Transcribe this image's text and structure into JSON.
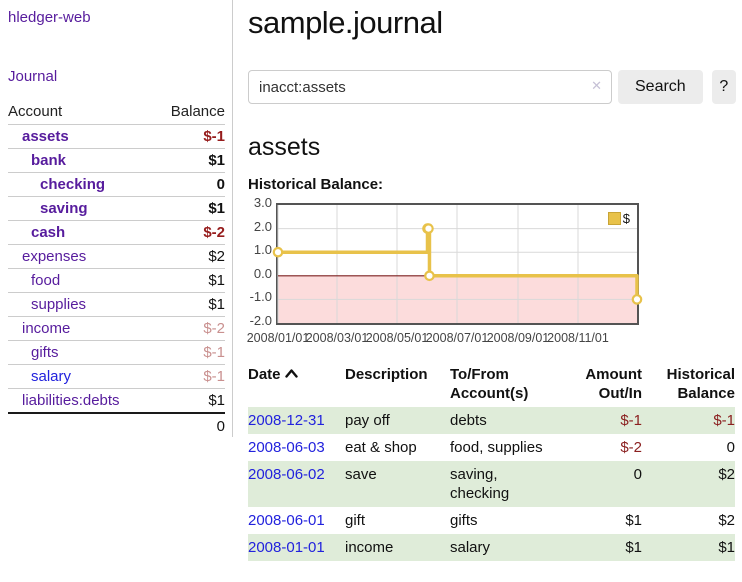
{
  "app": {
    "brand": "hledger-web",
    "nav_journal": "Journal"
  },
  "sidebar": {
    "headers": {
      "account": "Account",
      "balance": "Balance"
    },
    "accounts": [
      {
        "name": "assets",
        "indent": 1,
        "bold": true,
        "balance": "$-1",
        "balance_style": "neg-strong"
      },
      {
        "name": "bank",
        "indent": 2,
        "bold": true,
        "balance": "$1",
        "balance_style": "pos"
      },
      {
        "name": "checking",
        "indent": 3,
        "bold": true,
        "balance": "0",
        "balance_style": "pos"
      },
      {
        "name": "saving",
        "indent": 3,
        "bold": true,
        "balance": "$1",
        "balance_style": "pos"
      },
      {
        "name": "cash",
        "indent": 2,
        "bold": true,
        "balance": "$-2",
        "balance_style": "neg-strong"
      },
      {
        "name": "expenses",
        "indent": 1,
        "bold": false,
        "balance": "$2",
        "balance_style": "pos"
      },
      {
        "name": "food",
        "indent": 2,
        "bold": false,
        "balance": "$1",
        "balance_style": "pos"
      },
      {
        "name": "supplies",
        "indent": 2,
        "bold": false,
        "balance": "$1",
        "balance_style": "pos"
      },
      {
        "name": "income",
        "indent": 1,
        "bold": false,
        "balance": "$-2",
        "balance_style": "neg-soft"
      },
      {
        "name": "gifts",
        "indent": 2,
        "bold": false,
        "balance": "$-1",
        "balance_style": "neg-soft"
      },
      {
        "name": "salary",
        "indent": 2,
        "bold": false,
        "balance": "$-1",
        "balance_style": "neg-soft",
        "link_color": "blue"
      },
      {
        "name": "liabilities:debts",
        "indent": 1,
        "bold": false,
        "balance": "$1",
        "balance_style": "pos"
      }
    ],
    "total": "0"
  },
  "header": {
    "title": "sample.journal"
  },
  "search": {
    "value": "inacct:assets",
    "clear_icon": "✕",
    "button": "Search",
    "help": "?"
  },
  "account_page": {
    "heading": "assets"
  },
  "chart_data": {
    "type": "line",
    "title": "Historical Balance:",
    "step": true,
    "series": [
      {
        "name": "$",
        "color": "#e8c24a",
        "points": [
          [
            "2008-01-01",
            1
          ],
          [
            "2008-06-01",
            2
          ],
          [
            "2008-06-02",
            2
          ],
          [
            "2008-06-03",
            0
          ],
          [
            "2008-12-31",
            -1
          ]
        ]
      }
    ],
    "x_range": [
      "2008-01-01",
      "2008-12-31"
    ],
    "ylim": [
      -2,
      3
    ],
    "x_ticks": [
      "2008/01/01",
      "2008/03/01",
      "2008/05/01",
      "2008/07/01",
      "2008/09/01",
      "2008/11/01"
    ],
    "y_ticks": [
      3,
      2,
      1,
      0,
      -1,
      -2
    ],
    "y_tick_labels": [
      "3.0",
      "2.0",
      "1.0",
      "0.0",
      "-1.0",
      "-2.0"
    ],
    "grid": true,
    "negative_region_color": "#fcdcdc",
    "zero_line_color": "#7d1f1f",
    "grid_color": "#d9d9d9",
    "legend": {
      "label": "$",
      "position": "top-right"
    }
  },
  "register": {
    "headers": {
      "date": "Date",
      "description": "Description",
      "accounts": "To/From\nAccount(s)",
      "amount": "Amount\nOut/In",
      "balance": "Historical\nBalance"
    },
    "rows": [
      {
        "date": "2008-12-31",
        "description": "pay off",
        "accounts": "debts",
        "amount": "$-1",
        "amount_neg": true,
        "balance": "$-1",
        "balance_neg": true
      },
      {
        "date": "2008-06-03",
        "description": "eat & shop",
        "accounts": "food, supplies",
        "amount": "$-2",
        "amount_neg": true,
        "balance": "0",
        "balance_neg": false
      },
      {
        "date": "2008-06-02",
        "description": "save",
        "accounts": "saving, checking",
        "amount": "0",
        "amount_neg": false,
        "balance": "$2",
        "balance_neg": false
      },
      {
        "date": "2008-06-01",
        "description": "gift",
        "accounts": "gifts",
        "amount": "$1",
        "amount_neg": false,
        "balance": "$2",
        "balance_neg": false
      },
      {
        "date": "2008-01-01",
        "description": "income",
        "accounts": "salary",
        "amount": "$1",
        "amount_neg": false,
        "balance": "$1",
        "balance_neg": false
      }
    ]
  }
}
